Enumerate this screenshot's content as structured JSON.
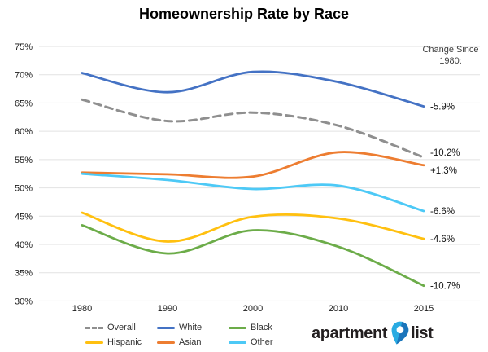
{
  "title": "Homeownership Rate by Race",
  "annotation_header": {
    "line1": "Change Since",
    "line2": "1980:"
  },
  "chart_data": {
    "type": "line",
    "title": "Homeownership Rate by Race",
    "xlabel": "",
    "ylabel": "",
    "x": [
      1980,
      1990,
      2000,
      2010,
      2015
    ],
    "x_labels": [
      "1980",
      "1990",
      "2000",
      "2010",
      "2015"
    ],
    "ylim": [
      30,
      75
    ],
    "ytick_step": 5,
    "ytick_labels": [
      "75%",
      "70%",
      "65%",
      "60%",
      "55%",
      "50%",
      "45%",
      "40%",
      "35%",
      "30%"
    ],
    "grid": "horizontal",
    "legend_position": "bottom",
    "smoothing": true,
    "series": [
      {
        "name": "Overall",
        "color": "#8F8F8F",
        "dashed": true,
        "values": [
          65.6,
          61.8,
          63.3,
          61.0,
          55.4
        ],
        "change_label": "-10.2%"
      },
      {
        "name": "White",
        "color": "#4472C4",
        "dashed": false,
        "values": [
          70.3,
          66.9,
          70.5,
          68.7,
          64.4
        ],
        "change_label": "-5.9%"
      },
      {
        "name": "Black",
        "color": "#6CAC49",
        "dashed": false,
        "values": [
          43.4,
          38.4,
          42.5,
          39.6,
          32.7
        ],
        "change_label": "-10.7%"
      },
      {
        "name": "Hispanic",
        "color": "#FFC010",
        "dashed": false,
        "values": [
          45.6,
          40.5,
          44.9,
          44.6,
          41.0
        ],
        "change_label": "-4.6%"
      },
      {
        "name": "Asian",
        "color": "#ED7D31",
        "dashed": false,
        "values": [
          52.7,
          52.4,
          52.0,
          56.3,
          54.0
        ],
        "change_label": "+1.3%"
      },
      {
        "name": "Other",
        "color": "#4DC9F6",
        "dashed": false,
        "values": [
          52.5,
          51.4,
          49.8,
          50.4,
          45.9
        ],
        "change_label": "-6.6%"
      }
    ]
  },
  "logo": {
    "part1": "apartment",
    "part2": "list",
    "pin_light": "#29ABE2",
    "pin_dark": "#1B75BB"
  }
}
